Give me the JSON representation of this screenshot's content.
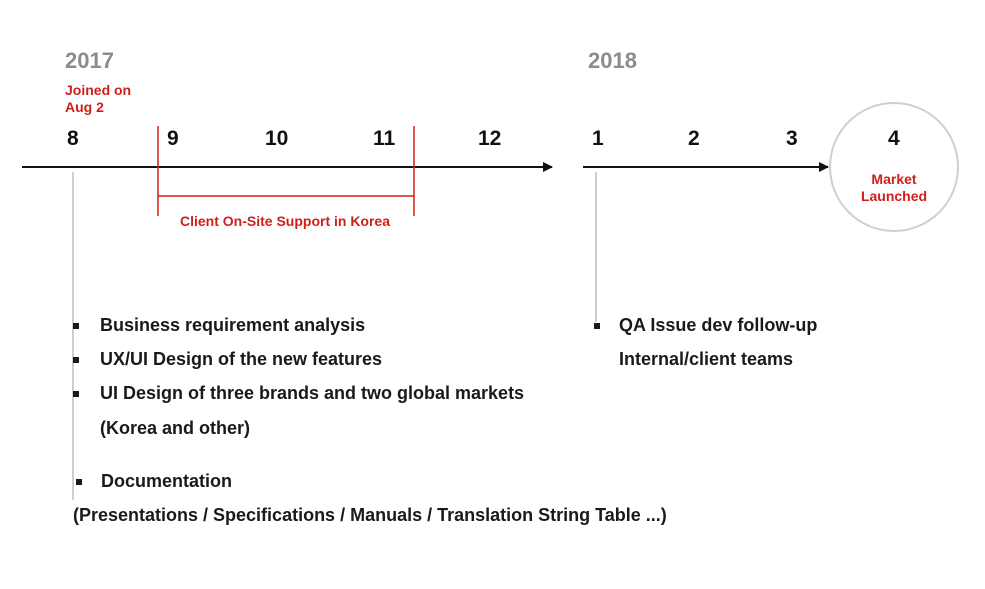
{
  "years": {
    "y2017": "2017",
    "y2018": "2018"
  },
  "joined": {
    "line1": "Joined on",
    "line2": "Aug 2"
  },
  "months": [
    "8",
    "9",
    "10",
    "11",
    "12",
    "1",
    "2",
    "3",
    "4"
  ],
  "support_label": "Client On-Site Support in Korea",
  "launch": {
    "line1": "Market",
    "line2": "Launched"
  },
  "tasks_2017": {
    "item1": "Business requirement analysis",
    "item2": "UX/UI Design of the new features",
    "item3": "UI Design of three brands and two global markets",
    "item3_cont": "(Korea and other)",
    "item4": "Documentation",
    "item4_cont": "(Presentations / Specifications / Manuals / Translation String Table ...)"
  },
  "tasks_2018": {
    "item1": "QA Issue dev follow-up",
    "item1_cont": "Internal/client teams"
  },
  "colors": {
    "accent_red": "#d01f1a",
    "year_gray": "#8c8c8c",
    "circle_gray": "#cfcfcf",
    "text": "#111111"
  }
}
